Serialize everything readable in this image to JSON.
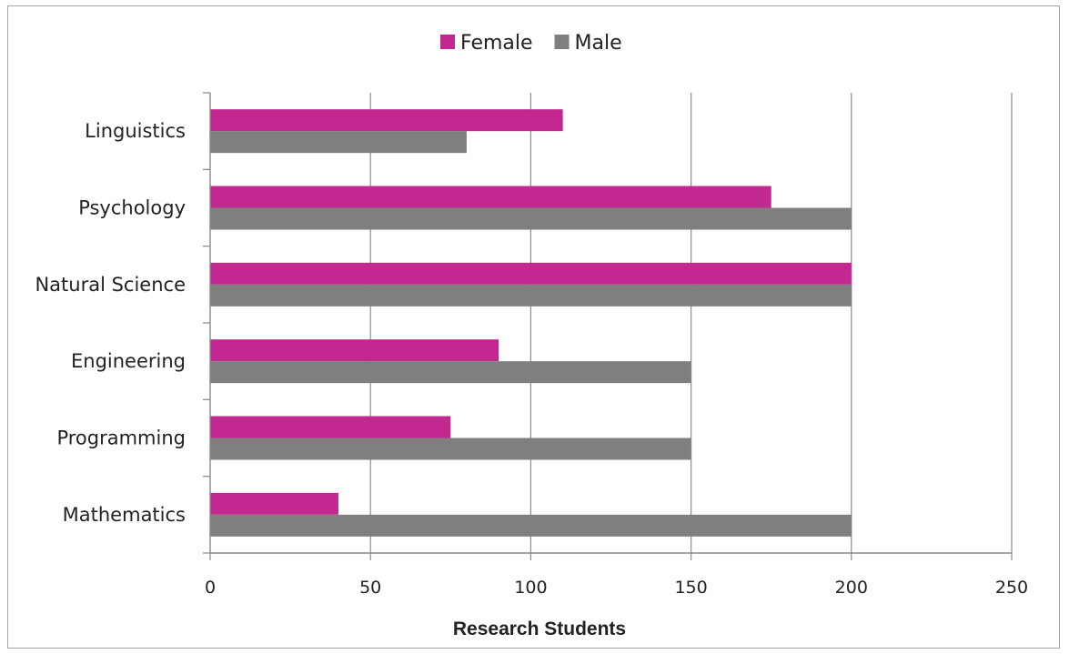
{
  "chart_data": {
    "type": "bar",
    "orientation": "horizontal",
    "categories": [
      "Linguistics",
      "Psychology",
      "Natural Science",
      "Engineering",
      "Programming",
      "Mathematics"
    ],
    "series": [
      {
        "name": "Female",
        "color": "#c2288f",
        "values": [
          110,
          175,
          200,
          90,
          75,
          40
        ]
      },
      {
        "name": "Male",
        "color": "#7f7f7f",
        "values": [
          80,
          200,
          200,
          150,
          150,
          200
        ]
      }
    ],
    "xlabel": "Research Students",
    "ylabel": "",
    "xlim": [
      0,
      250
    ],
    "xticks": [
      0,
      50,
      100,
      150,
      200,
      250
    ],
    "grid": "vertical",
    "legend": "top-center"
  }
}
